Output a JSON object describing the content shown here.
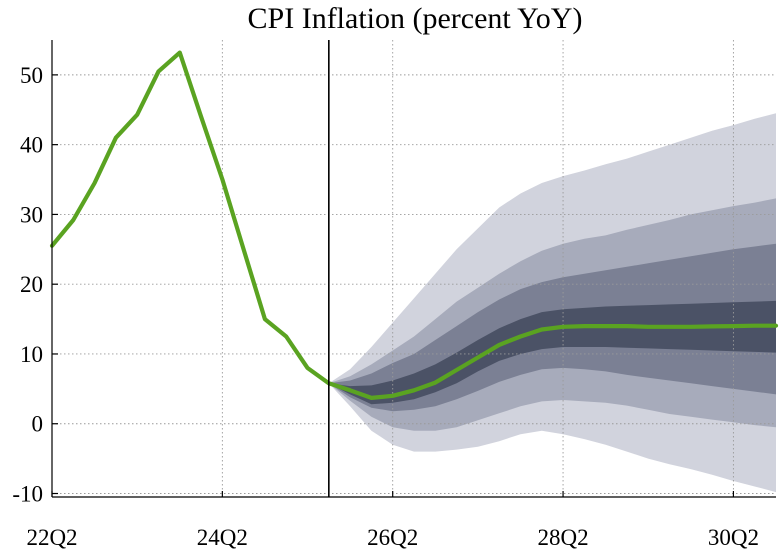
{
  "chart_data": {
    "type": "line",
    "title": "CPI Inflation (percent YoY)",
    "xlabel": "",
    "ylabel": "",
    "x_start": "22Q2",
    "x_tick_labels": [
      "22Q2",
      "24Q2",
      "26Q2",
      "28Q2",
      "30Q2"
    ],
    "x_tick_index": [
      0,
      8,
      16,
      24,
      32
    ],
    "forecast_start_index": 13,
    "y_ticks": [
      -10,
      0,
      10,
      20,
      30,
      40,
      50
    ],
    "ylim": [
      -10.5,
      55
    ],
    "grid": true,
    "series": [
      {
        "name": "CPI inflation",
        "color": "#5aa321",
        "values": [
          25.5,
          29.2,
          34.5,
          41.0,
          44.3,
          50.5,
          53.2,
          44.0,
          35.0,
          25.0,
          15.0,
          12.5,
          8.0,
          5.8,
          4.8,
          3.7,
          4.0,
          4.8,
          5.9,
          7.7,
          9.5,
          11.3,
          12.5,
          13.5,
          13.9,
          14.0,
          14.0,
          14.0,
          13.9,
          13.9,
          13.9,
          13.95,
          14.0,
          14.05,
          14.05
        ]
      }
    ],
    "fan_bands": {
      "colors": [
        "#d1d3dd",
        "#a7abbb",
        "#7b8094",
        "#4b5266"
      ],
      "x_index": [
        13,
        14,
        15,
        16,
        17,
        18,
        19,
        20,
        21,
        22,
        23,
        24,
        25,
        26,
        27,
        28,
        29,
        30,
        31,
        32,
        33,
        34
      ],
      "band_outer": {
        "lower": [
          5.8,
          2.5,
          -1.0,
          -3.0,
          -4.0,
          -4.0,
          -3.7,
          -3.3,
          -2.5,
          -1.5,
          -1.0,
          -1.5,
          -2.2,
          -3.0,
          -4.0,
          -5.0,
          -5.8,
          -6.5,
          -7.3,
          -8.2,
          -9.0,
          -9.8
        ],
        "upper": [
          5.8,
          7.8,
          11.0,
          14.5,
          18.0,
          21.5,
          25.0,
          28.0,
          31.0,
          33.0,
          34.5,
          35.5,
          36.3,
          37.2,
          38.0,
          39.0,
          40.0,
          41.0,
          42.0,
          42.8,
          43.7,
          44.5
        ]
      },
      "band_2": {
        "lower": [
          5.8,
          3.3,
          1.0,
          -0.5,
          -1.0,
          -1.0,
          -0.5,
          0.5,
          1.5,
          2.5,
          3.2,
          3.4,
          3.2,
          3.0,
          2.6,
          2.0,
          1.4,
          1.0,
          0.6,
          0.2,
          -0.2,
          -0.5
        ],
        "upper": [
          5.8,
          6.8,
          8.5,
          10.5,
          12.5,
          15.0,
          17.5,
          19.5,
          21.5,
          23.3,
          24.8,
          25.8,
          26.5,
          27.0,
          27.8,
          28.5,
          29.2,
          30.0,
          30.6,
          31.2,
          31.7,
          32.3
        ]
      },
      "band_3": {
        "lower": [
          5.8,
          3.8,
          2.3,
          1.8,
          2.0,
          2.5,
          3.5,
          4.7,
          6.0,
          7.0,
          7.8,
          8.0,
          7.8,
          7.5,
          7.0,
          6.6,
          6.2,
          5.8,
          5.4,
          5.0,
          4.6,
          4.2
        ],
        "upper": [
          5.8,
          6.2,
          7.2,
          8.7,
          10.0,
          12.0,
          14.0,
          16.0,
          17.8,
          19.3,
          20.3,
          21.0,
          21.5,
          22.0,
          22.5,
          23.0,
          23.5,
          24.0,
          24.5,
          25.0,
          25.4,
          25.8
        ]
      },
      "band_inner": {
        "lower": [
          5.8,
          4.2,
          2.8,
          3.0,
          3.5,
          4.5,
          5.8,
          7.5,
          9.0,
          10.0,
          10.7,
          11.0,
          11.0,
          11.0,
          10.9,
          10.8,
          10.7,
          10.6,
          10.5,
          10.4,
          10.3,
          10.2
        ],
        "upper": [
          5.8,
          5.4,
          5.5,
          6.2,
          7.2,
          8.5,
          10.2,
          12.0,
          13.7,
          15.0,
          16.0,
          16.4,
          16.6,
          16.8,
          16.9,
          17.0,
          17.1,
          17.2,
          17.3,
          17.4,
          17.5,
          17.6
        ]
      }
    }
  }
}
